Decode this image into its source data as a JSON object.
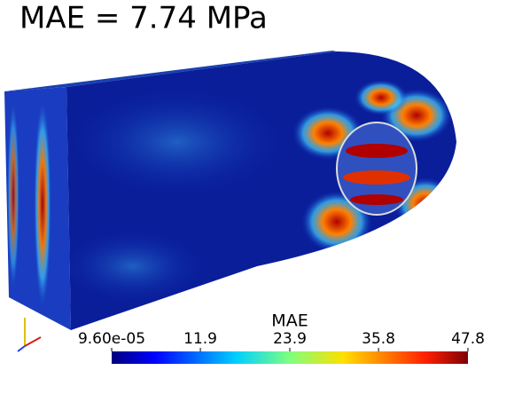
{
  "title": "MAE = 7.74 MPa",
  "colorbar": {
    "title": "MAE",
    "range": [
      9.6e-05,
      47.8
    ],
    "ticks": [
      {
        "value": 9.6e-05,
        "label": "9.60e-05"
      },
      11.9,
      23.9,
      35.8,
      47.8
    ]
  }
}
